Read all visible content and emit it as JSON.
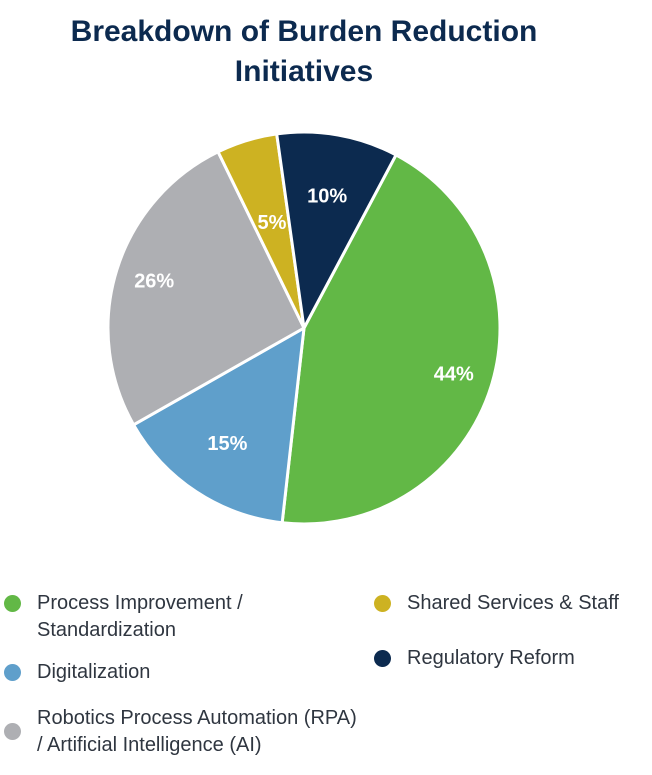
{
  "chart_data": {
    "type": "pie",
    "title": [
      "Breakdown of Burden Reduction",
      "Initiatives"
    ],
    "slices": [
      {
        "label": "Process Improvement / Standardization",
        "value": 44,
        "display": "44%",
        "color": "#62b846"
      },
      {
        "label": "Digitalization",
        "value": 15,
        "display": "15%",
        "color": "#5f9fcb"
      },
      {
        "label": "Robotics Process Automation (RPA) / Artificial Intelligence (AI)",
        "value": 26,
        "display": "26%",
        "color": "#aeafb3"
      },
      {
        "label": "Shared Services & Staff",
        "value": 5,
        "display": "5%",
        "color": "#cdb222"
      },
      {
        "label": "Regulatory Reform",
        "value": 10,
        "display": "10%",
        "color": "#0c2a4f"
      }
    ],
    "legend": {
      "left_column": [
        {
          "lines": [
            "Process Improvement /",
            "Standardization"
          ],
          "color": "#62b846"
        },
        {
          "lines": [
            "Digitalization"
          ],
          "color": "#5f9fcb"
        },
        {
          "lines": [
            "Robotics Process Automation (RPA)",
            "/ Artificial Intelligence (AI)"
          ],
          "color": "#aeafb3"
        }
      ],
      "right_column": [
        {
          "lines": [
            "Shared Services & Staff"
          ],
          "color": "#cdb222"
        },
        {
          "lines": [
            "Regulatory Reform"
          ],
          "color": "#0c2a4f"
        }
      ]
    }
  }
}
